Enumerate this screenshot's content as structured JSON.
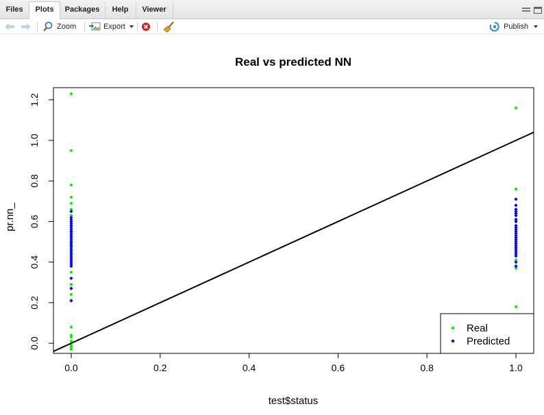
{
  "tabs": [
    {
      "label": "Files"
    },
    {
      "label": "Plots"
    },
    {
      "label": "Packages"
    },
    {
      "label": "Help"
    },
    {
      "label": "Viewer"
    }
  ],
  "toolbar": {
    "zoom_label": "Zoom",
    "export_label": "Export",
    "publish_label": "Publish"
  },
  "chart_data": {
    "type": "scatter",
    "title": "Real vs predicted NN",
    "xlabel": "test$status",
    "ylabel": "pr.nn_",
    "xlim": [
      -0.04,
      1.04
    ],
    "ylim": [
      -0.05,
      1.26
    ],
    "xticks": [
      0.0,
      0.2,
      0.4,
      0.6,
      0.8,
      1.0
    ],
    "xtick_labels": [
      "0.0",
      "0.2",
      "0.4",
      "0.6",
      "0.8",
      "1.0"
    ],
    "yticks": [
      0.0,
      0.2,
      0.4,
      0.6,
      0.8,
      1.0,
      1.2
    ],
    "ytick_labels": [
      "0.0",
      "0.2",
      "0.4",
      "0.6",
      "0.8",
      "1.0",
      "1.2"
    ],
    "legend_position": "bottom-right",
    "series": [
      {
        "name": "Real",
        "color": "#00ee00",
        "x": [
          0,
          0,
          0,
          0,
          0,
          0,
          0,
          0,
          0,
          0,
          0,
          0,
          0,
          0,
          0,
          0,
          0,
          0,
          0,
          0,
          0,
          0,
          0,
          0,
          0,
          0,
          0,
          0,
          0,
          1,
          1,
          1,
          1,
          1,
          1,
          1,
          1,
          1,
          1,
          1,
          1,
          1,
          1
        ],
        "y": [
          1.23,
          0.95,
          0.78,
          0.72,
          0.69,
          0.66,
          0.63,
          0.6,
          0.58,
          0.55,
          0.53,
          0.5,
          0.48,
          0.46,
          0.44,
          0.42,
          0.4,
          0.38,
          0.35,
          0.29,
          0.24,
          0.21,
          0.08,
          0.04,
          0.03,
          0.01,
          -0.01,
          -0.02,
          -0.03,
          1.16,
          0.76,
          0.66,
          0.63,
          0.6,
          0.57,
          0.55,
          0.52,
          0.49,
          0.47,
          0.44,
          0.41,
          0.37,
          0.18
        ]
      },
      {
        "name": "Predicted",
        "color": "#0000ee",
        "x": [
          0,
          0,
          0,
          0,
          0,
          0,
          0,
          0,
          0,
          0,
          0,
          0,
          0,
          0,
          0,
          0,
          0,
          0,
          0,
          0,
          0,
          0,
          0,
          0,
          0,
          0,
          0,
          0,
          0,
          1,
          1,
          1,
          1,
          1,
          1,
          1,
          1,
          1,
          1,
          1,
          1,
          1,
          1,
          1,
          1,
          1,
          1,
          1,
          1,
          1,
          1,
          1,
          1,
          1,
          1
        ],
        "y": [
          0.65,
          0.62,
          0.61,
          0.6,
          0.59,
          0.58,
          0.57,
          0.56,
          0.55,
          0.54,
          0.53,
          0.52,
          0.51,
          0.5,
          0.49,
          0.48,
          0.47,
          0.46,
          0.45,
          0.44,
          0.43,
          0.42,
          0.41,
          0.4,
          0.39,
          0.38,
          0.32,
          0.27,
          0.21,
          0.71,
          0.68,
          0.66,
          0.65,
          0.64,
          0.63,
          0.61,
          0.6,
          0.58,
          0.57,
          0.56,
          0.55,
          0.54,
          0.53,
          0.52,
          0.51,
          0.5,
          0.49,
          0.48,
          0.47,
          0.46,
          0.45,
          0.44,
          0.43,
          0.4,
          0.38
        ]
      }
    ],
    "line": {
      "color": "#000000",
      "x": [
        -0.04,
        1.04
      ],
      "y": [
        -0.04,
        1.04
      ]
    }
  }
}
